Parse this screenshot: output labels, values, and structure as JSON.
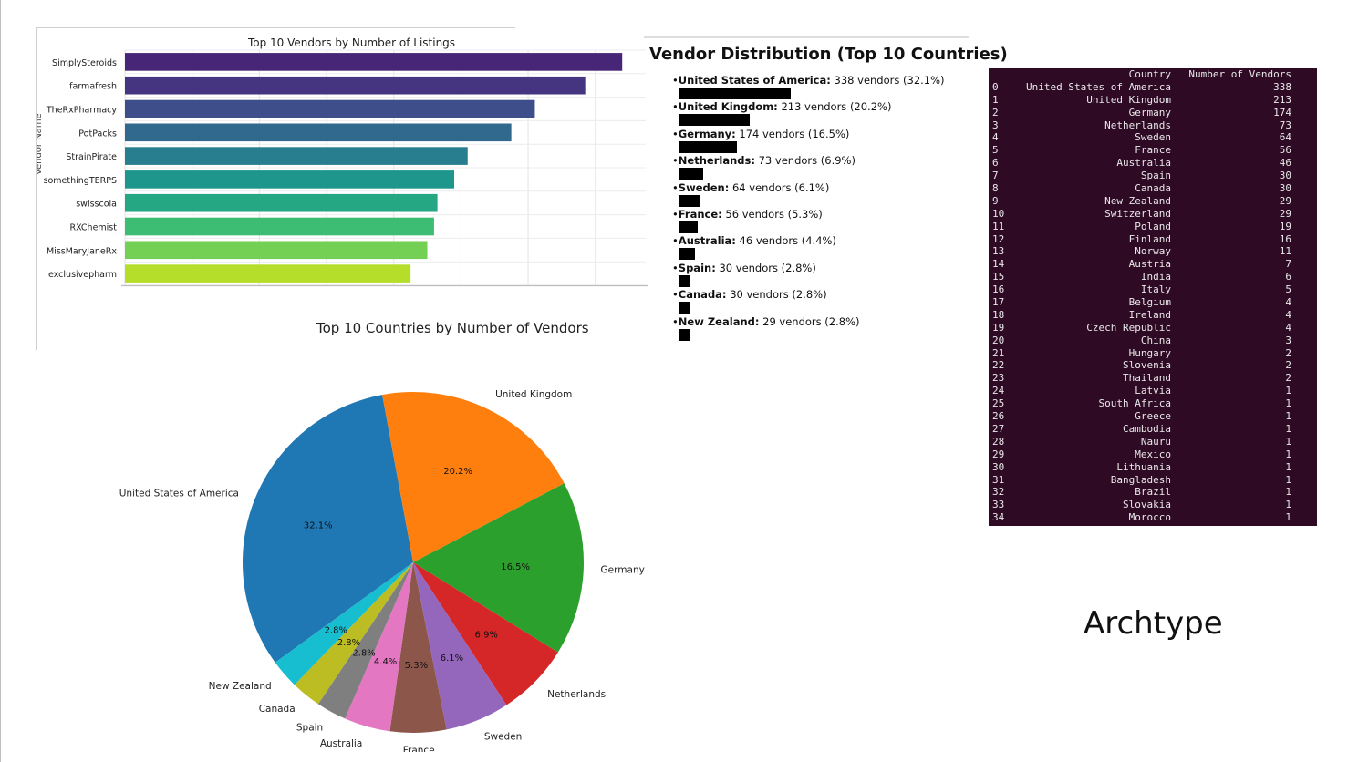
{
  "chart_data": [
    {
      "type": "bar",
      "orientation": "horizontal",
      "title": "Top 10 Vendors by Number of Listings",
      "ylabel": "Vendor Name",
      "categories": [
        "SimplySteroids",
        "farmafresh",
        "TheRxPharmacy",
        "PotPacks",
        "StrainPirate",
        "somethingTERPS",
        "swisscola",
        "RXChemist",
        "MissMaryJaneRx",
        "exclusivepharm"
      ],
      "values": [
        148,
        137,
        122,
        115,
        102,
        98,
        93,
        92,
        90,
        85
      ],
      "xlim": [
        0,
        155
      ],
      "colors": [
        "#482677",
        "#453581",
        "#3d4e8a",
        "#31688e",
        "#287d8e",
        "#1f968b",
        "#26a784",
        "#3dbc74",
        "#73d055",
        "#b5de2b"
      ],
      "grid": true
    },
    {
      "type": "pie",
      "title": "Top 10 Countries by Number of Vendors",
      "labels": [
        "United States of America",
        "United Kingdom",
        "Germany",
        "Netherlands",
        "Sweden",
        "France",
        "Australia",
        "Spain",
        "Canada",
        "New Zealand"
      ],
      "values": [
        338,
        213,
        174,
        73,
        64,
        56,
        46,
        30,
        30,
        29
      ],
      "percent_labels": [
        "32.1%",
        "20.2%",
        "16.5%",
        "6.9%",
        "6.1%",
        "5.3%",
        "4.4%",
        "2.8%",
        "2.8%",
        "2.8%"
      ],
      "colors": [
        "#1f77b4",
        "#ff7f0e",
        "#2ca02c",
        "#d62728",
        "#9467bd",
        "#8c564b",
        "#e377c2",
        "#7f7f7f",
        "#bcbd22",
        "#17becf"
      ]
    },
    {
      "type": "table",
      "columns": [
        "Country",
        "Number of Vendors"
      ],
      "rows": [
        [
          "0",
          "United States of America",
          "338"
        ],
        [
          "1",
          "United Kingdom",
          "213"
        ],
        [
          "2",
          "Germany",
          "174"
        ],
        [
          "3",
          "Netherlands",
          "73"
        ],
        [
          "4",
          "Sweden",
          "64"
        ],
        [
          "5",
          "France",
          "56"
        ],
        [
          "6",
          "Australia",
          "46"
        ],
        [
          "7",
          "Spain",
          "30"
        ],
        [
          "8",
          "Canada",
          "30"
        ],
        [
          "9",
          "New Zealand",
          "29"
        ],
        [
          "10",
          "Switzerland",
          "29"
        ],
        [
          "11",
          "Poland",
          "19"
        ],
        [
          "12",
          "Finland",
          "16"
        ],
        [
          "13",
          "Norway",
          "11"
        ],
        [
          "14",
          "Austria",
          "7"
        ],
        [
          "15",
          "India",
          "6"
        ],
        [
          "16",
          "Italy",
          "5"
        ],
        [
          "17",
          "Belgium",
          "4"
        ],
        [
          "18",
          "Ireland",
          "4"
        ],
        [
          "19",
          "Czech Republic",
          "4"
        ],
        [
          "20",
          "China",
          "3"
        ],
        [
          "21",
          "Hungary",
          "2"
        ],
        [
          "22",
          "Slovenia",
          "2"
        ],
        [
          "23",
          "Thailand",
          "2"
        ],
        [
          "24",
          "Latvia",
          "1"
        ],
        [
          "25",
          "South Africa",
          "1"
        ],
        [
          "26",
          "Greece",
          "1"
        ],
        [
          "27",
          "Cambodia",
          "1"
        ],
        [
          "28",
          "Nauru",
          "1"
        ],
        [
          "29",
          "Mexico",
          "1"
        ],
        [
          "30",
          "Lithuania",
          "1"
        ],
        [
          "31",
          "Bangladesh",
          "1"
        ],
        [
          "32",
          "Brazil",
          "1"
        ],
        [
          "33",
          "Slovakia",
          "1"
        ],
        [
          "34",
          "Morocco",
          "1"
        ]
      ]
    }
  ],
  "distribution": {
    "title": "Vendor Distribution (Top 10 Countries)",
    "items": [
      {
        "country": "United States of America:",
        "detail": " 338 vendors (32.1%)",
        "share": 32.1
      },
      {
        "country": "United Kingdom:",
        "detail": " 213 vendors (20.2%)",
        "share": 20.2
      },
      {
        "country": "Germany:",
        "detail": " 174 vendors (16.5%)",
        "share": 16.5
      },
      {
        "country": "Netherlands:",
        "detail": " 73 vendors (6.9%)",
        "share": 6.9
      },
      {
        "country": "Sweden:",
        "detail": " 64 vendors (6.1%)",
        "share": 6.1
      },
      {
        "country": "France:",
        "detail": " 56 vendors (5.3%)",
        "share": 5.3
      },
      {
        "country": "Australia:",
        "detail": " 46 vendors (4.4%)",
        "share": 4.4
      },
      {
        "country": "Spain:",
        "detail": " 30 vendors (2.8%)",
        "share": 2.8
      },
      {
        "country": "Canada:",
        "detail": " 30 vendors (2.8%)",
        "share": 2.8
      },
      {
        "country": "New Zealand:",
        "detail": " 29 vendors (2.8%)",
        "share": 2.8
      }
    ]
  },
  "footer": {
    "text": "Archtype"
  }
}
